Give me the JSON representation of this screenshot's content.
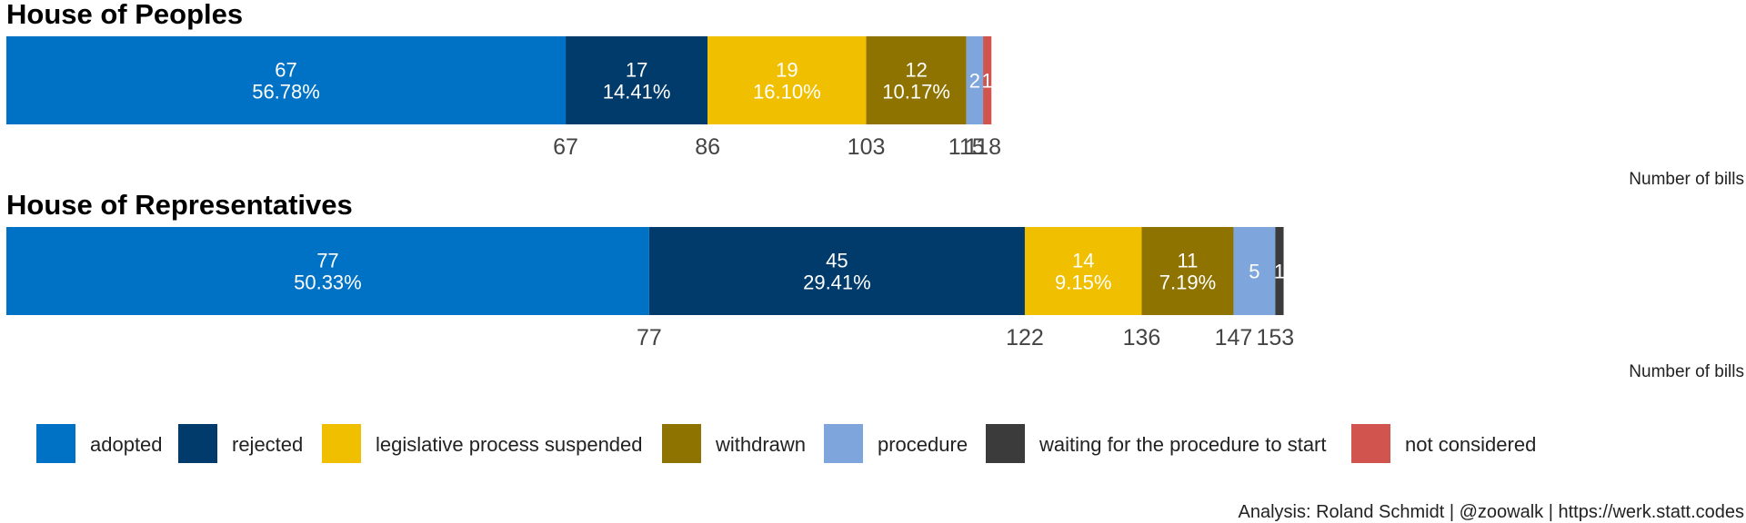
{
  "chart_data": {
    "type": "bar",
    "orientation": "horizontal-stacked",
    "categories": [
      "adopted",
      "rejected",
      "legislative process suspended",
      "withdrawn",
      "procedure",
      "waiting for the procedure to start",
      "not considered"
    ],
    "colors": {
      "adopted": "#0072c6",
      "rejected": "#003b6b",
      "legislative process suspended": "#f0c000",
      "withdrawn": "#8f7300",
      "procedure": "#7ea6dc",
      "waiting for the procedure to start": "#3b3b3b",
      "not considered": "#d1544e"
    },
    "panels": [
      {
        "title": "House of Peoples",
        "xlabel": "Number of bills",
        "total": 118,
        "ticks": [
          "67",
          "86",
          "103",
          "115",
          "118"
        ],
        "segments": [
          {
            "category": "adopted",
            "value": 67,
            "value_label": "67",
            "pct_label": "56.78%"
          },
          {
            "category": "rejected",
            "value": 17,
            "value_label": "17",
            "pct_label": "14.41%"
          },
          {
            "category": "legislative process suspended",
            "value": 19,
            "value_label": "19",
            "pct_label": "16.10%"
          },
          {
            "category": "withdrawn",
            "value": 12,
            "value_label": "12",
            "pct_label": "10.17%"
          },
          {
            "category": "procedure",
            "value": 2,
            "value_label": "2",
            "pct_label": ""
          },
          {
            "category": "not considered",
            "value": 1,
            "value_label": "1",
            "pct_label": ""
          }
        ]
      },
      {
        "title": "House of Representatives",
        "xlabel": "Number of bills",
        "total": 153,
        "ticks": [
          "77",
          "122",
          "136",
          "147",
          "153"
        ],
        "segments": [
          {
            "category": "adopted",
            "value": 77,
            "value_label": "77",
            "pct_label": "50.33%"
          },
          {
            "category": "rejected",
            "value": 45,
            "value_label": "45",
            "pct_label": "29.41%"
          },
          {
            "category": "legislative process suspended",
            "value": 14,
            "value_label": "14",
            "pct_label": "9.15%"
          },
          {
            "category": "withdrawn",
            "value": 11,
            "value_label": "11",
            "pct_label": "7.19%"
          },
          {
            "category": "procedure",
            "value": 5,
            "value_label": "5",
            "pct_label": ""
          },
          {
            "category": "waiting for the procedure to start",
            "value": 1,
            "value_label": "1",
            "pct_label": ""
          }
        ]
      }
    ],
    "legend": {
      "position": "bottom",
      "items": [
        "adopted",
        "rejected",
        "legislative process suspended",
        "withdrawn",
        "procedure",
        "waiting for the procedure to start",
        "not considered"
      ]
    },
    "caption": "Analysis: Roland Schmidt | @zoowalk | https://werk.statt.codes"
  }
}
